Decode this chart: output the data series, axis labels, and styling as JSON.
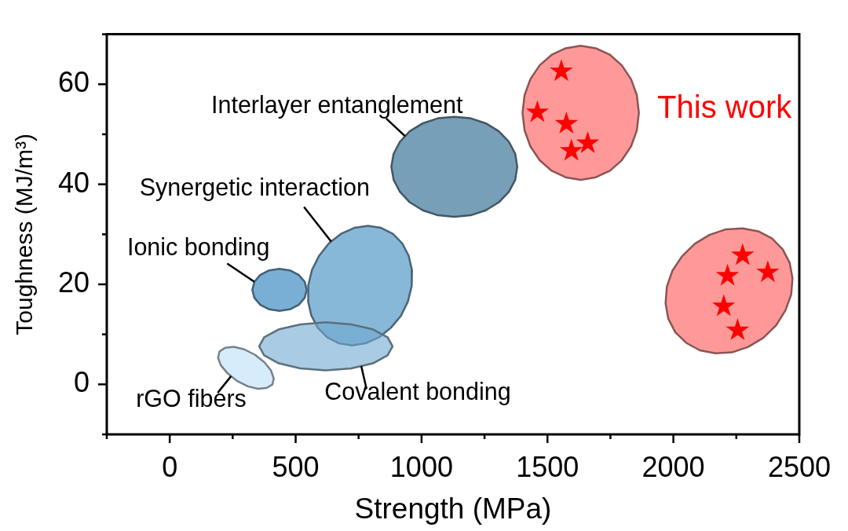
{
  "chart_data": {
    "type": "scatter",
    "xlabel": "Strength (MPa)",
    "ylabel": "Toughness (MJ/m³)",
    "xlim": [
      -250,
      2500
    ],
    "ylim": [
      -10,
      70
    ],
    "xticks": [
      {
        "value": -250,
        "label": null
      },
      0,
      {
        "value": 250,
        "label": null
      },
      500,
      {
        "value": 750,
        "label": null
      },
      1000,
      {
        "value": 1250,
        "label": null
      },
      1500,
      {
        "value": 1750,
        "label": null
      },
      2000,
      {
        "value": 2250,
        "label": null
      },
      2500
    ],
    "yticks": [
      {
        "value": -10,
        "label": null
      },
      0,
      {
        "value": 10,
        "label": null
      },
      20,
      {
        "value": 30,
        "label": null
      },
      40,
      {
        "value": 50,
        "label": null
      },
      60,
      {
        "value": 70,
        "label": null
      }
    ],
    "grid": false,
    "legend": false,
    "series": [
      {
        "name": "Interlayer entanglement",
        "type": "area",
        "color": "#789fb8",
        "x": [
          1380,
          1372,
          1347,
          1307,
          1255,
          1195,
          1130,
          1065,
          1005,
          953,
          914,
          889,
          880,
          889,
          914,
          953,
          1005,
          1065,
          1130,
          1195,
          1255,
          1307,
          1347,
          1372,
          1380
        ],
        "values": [
          43.5,
          46.1,
          48.5,
          50.6,
          52.2,
          53.2,
          53.5,
          53.2,
          52.2,
          50.6,
          48.5,
          46.1,
          43.5,
          40.9,
          38.5,
          36.4,
          34.8,
          33.8,
          33.5,
          33.8,
          34.8,
          36.4,
          38.5,
          40.9,
          43.5
        ]
      },
      {
        "name": "Ionic bonding",
        "type": "area",
        "color": "#79afd4",
        "x": [
          544,
          536,
          512,
          477,
          436,
          395,
          360,
          336,
          328,
          336,
          360,
          395,
          436,
          477,
          512,
          536,
          544
        ],
        "values": [
          18.9,
          20.5,
          21.9,
          22.8,
          23.1,
          22.8,
          21.9,
          20.5,
          18.9,
          17.3,
          15.9,
          15.0,
          14.7,
          15.0,
          15.9,
          17.3,
          18.9
        ]
      },
      {
        "name": "Synergetic interaction",
        "type": "area",
        "color": "#88b8d8",
        "x": [
          839,
          886,
          923,
          949,
          962,
          961,
          946,
          918,
          878,
          831,
          778,
          724,
          672,
          625,
          588,
          562,
          549,
          550,
          565,
          593,
          632,
          680,
          733,
          787,
          839
        ],
        "values": [
          31.3,
          30.1,
          28.2,
          25.7,
          22.8,
          19.7,
          16.6,
          13.7,
          11.3,
          9.4,
          8.2,
          7.8,
          8.2,
          9.4,
          11.3,
          13.8,
          16.7,
          19.8,
          22.9,
          25.7,
          28.2,
          30.1,
          31.3,
          31.7,
          31.3
        ]
      },
      {
        "name": "Covalent bonding",
        "type": "area",
        "color": "#a9cbe3",
        "x": [
          885,
          865,
          807,
          721,
          620,
          519,
          433,
          375,
          355,
          375,
          433,
          519,
          620,
          721,
          807,
          865,
          885
        ],
        "values": [
          7.6,
          9.4,
          11.0,
          12.0,
          12.4,
          12.0,
          11.0,
          9.4,
          7.6,
          5.8,
          4.2,
          3.2,
          2.8,
          3.2,
          4.2,
          5.8,
          7.6
        ]
      },
      {
        "name": "rGO fibers",
        "type": "area",
        "color": "#d6ecfa",
        "x": [
          408,
          413,
          402,
          376,
          339,
          296,
          254,
          220,
          198,
          192,
          203,
          230,
          267,
          310,
          351,
          386,
          408
        ],
        "values": [
          0,
          1.2,
          2.8,
          4.4,
          5.9,
          7.0,
          7.5,
          7.3,
          6.6,
          5.3,
          3.8,
          2.2,
          0.7,
          -0.4,
          -0.9,
          -0.7,
          0
        ]
      },
      {
        "type": "area",
        "color": "#ff9999",
        "x": [
          1863,
          1855,
          1832,
          1795,
          1748,
          1692,
          1632,
          1572,
          1517,
          1469,
          1432,
          1409,
          1401,
          1409,
          1432,
          1469,
          1517,
          1572,
          1632,
          1692,
          1748,
          1795,
          1832,
          1855,
          1863
        ],
        "values": [
          54.3,
          57.8,
          61.0,
          63.8,
          65.9,
          67.2,
          67.7,
          67.2,
          65.9,
          63.8,
          61.0,
          57.8,
          54.3,
          50.8,
          47.6,
          44.8,
          42.7,
          41.4,
          40.9,
          41.4,
          42.7,
          44.8,
          47.6,
          50.8,
          54.3
        ]
      },
      {
        "type": "area",
        "color": "#ff9999",
        "x": [
          2391,
          2434,
          2462,
          2473,
          2468,
          2445,
          2408,
          2357,
          2297,
          2233,
          2167,
          2105,
          2051,
          2008,
          1980,
          1969,
          1974,
          1996,
          2034,
          2085,
          2144,
          2209,
          2275,
          2337,
          2391
        ],
        "values": [
          29.2,
          27.0,
          24.3,
          21.2,
          18.0,
          14.8,
          11.8,
          9.3,
          7.5,
          6.4,
          6.2,
          6.8,
          8.3,
          10.4,
          13.1,
          16.2,
          19.5,
          22.7,
          25.6,
          28.1,
          29.9,
          31.0,
          31.2,
          30.6,
          29.2
        ]
      },
      {
        "name": "This work",
        "color": "#ff0000",
        "marker": "star",
        "x": [
          1555,
          1460,
          1575,
          1660,
          1595,
          2275,
          2215,
          2375,
          2200,
          2255
        ],
        "values": [
          62.6,
          54.4,
          52.1,
          48.2,
          46.7,
          25.8,
          21.7,
          22.4,
          15.6,
          10.8
        ]
      }
    ]
  }
}
